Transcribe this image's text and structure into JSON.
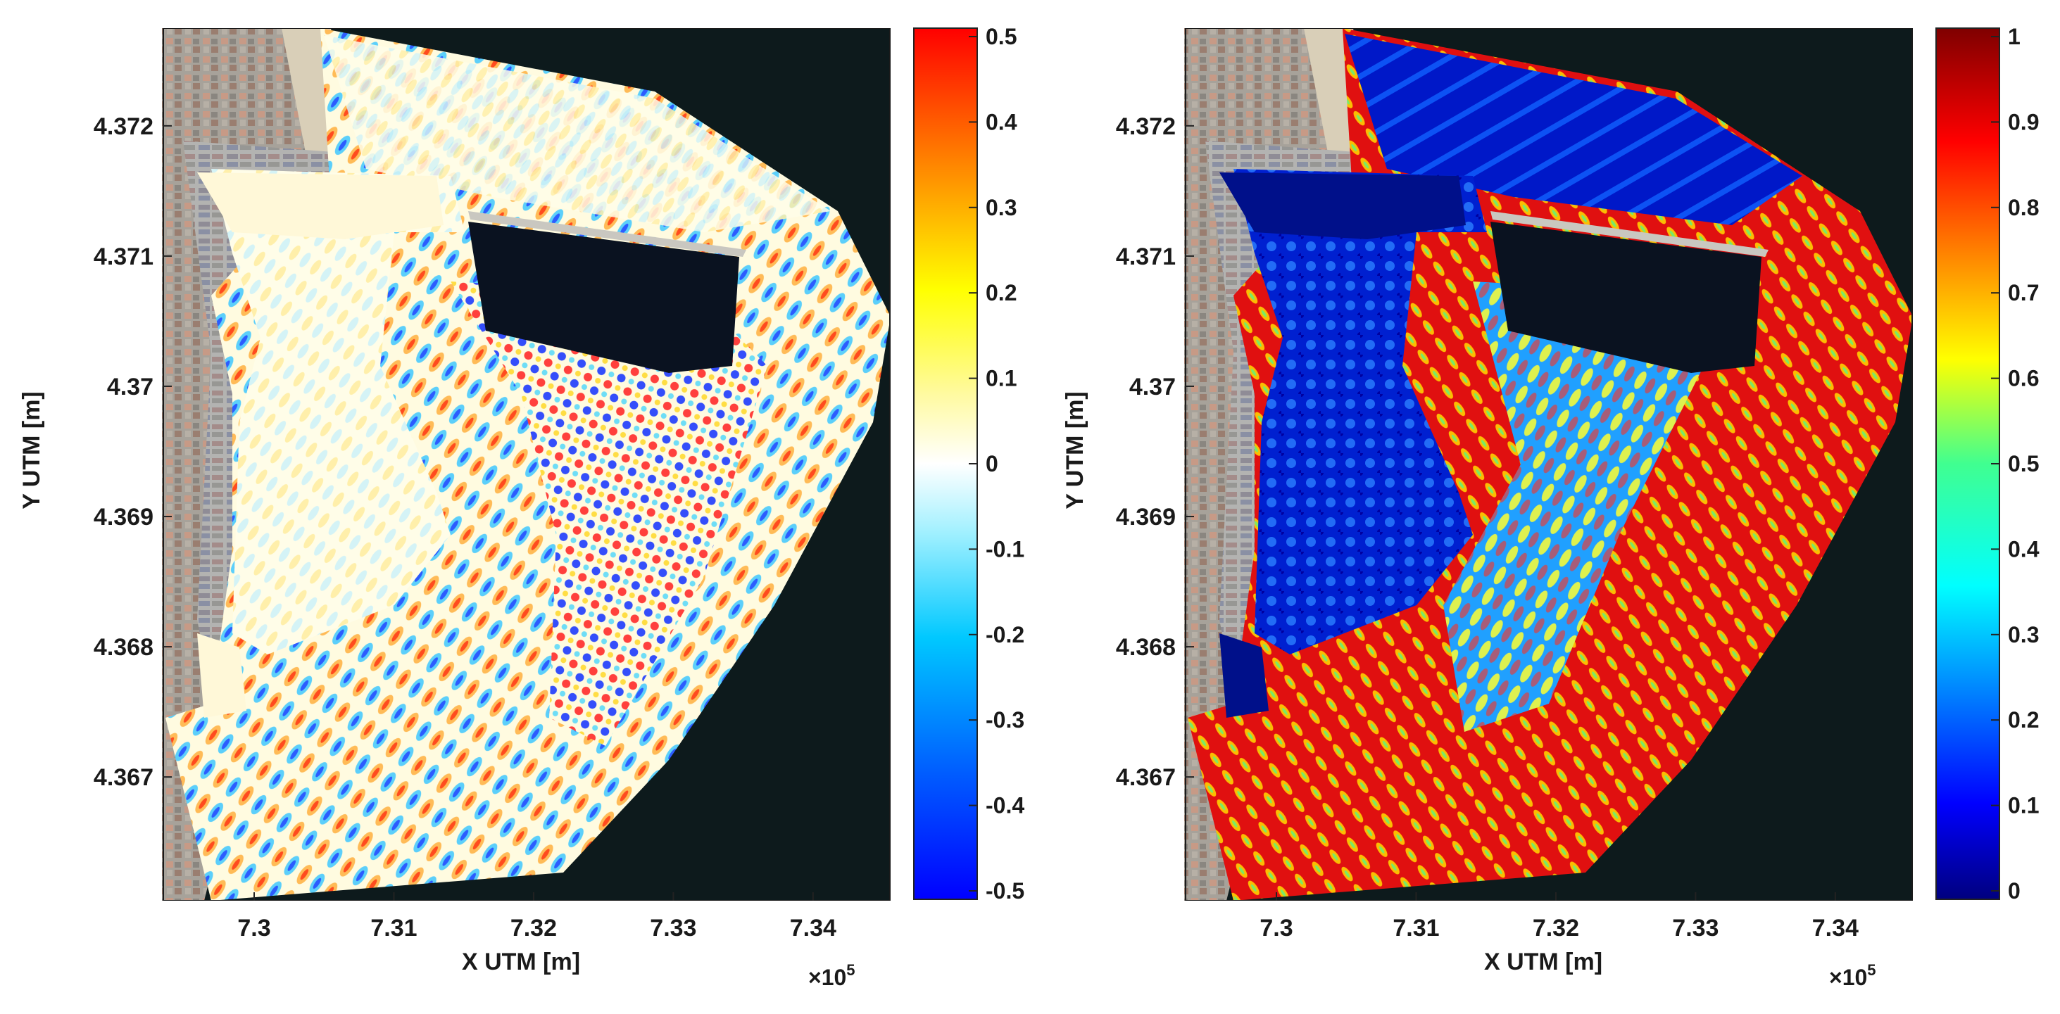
{
  "chart_data": [
    {
      "type": "heatmap",
      "panel": "left",
      "title": "",
      "xlabel": "X UTM [m]",
      "ylabel": "Y UTM [m]",
      "x_exponent_label": "×10^5",
      "x_ticks": [
        7.3,
        7.31,
        7.32,
        7.33,
        7.34
      ],
      "x_tick_labels": [
        "7.3",
        "7.31",
        "7.32",
        "7.33",
        "7.34"
      ],
      "y_ticks": [
        4.372,
        4.371,
        4.37,
        4.369,
        4.368,
        4.367
      ],
      "y_tick_labels": [
        "4.372",
        "4.371",
        "4.37",
        "4.369",
        "4.368",
        "4.367"
      ],
      "colorbar": {
        "min": -0.5,
        "max": 0.5,
        "colormap": "jet-with-white-center",
        "ticks": [
          "0.5",
          "0.4",
          "0.3",
          "0.2",
          "0.1",
          "0",
          "-0.1",
          "-0.2",
          "-0.3",
          "-0.4",
          "-0.5"
        ]
      },
      "background": "satellite image of port",
      "colors": {
        "positive": "#e01010",
        "negative": "#1010e0",
        "zero": "#fffbe0"
      }
    },
    {
      "type": "heatmap",
      "panel": "right",
      "title": "",
      "xlabel": "X UTM [m]",
      "ylabel": "Y UTM [m]",
      "x_exponent_label": "×10^5",
      "x_ticks": [
        7.3,
        7.31,
        7.32,
        7.33,
        7.34
      ],
      "x_tick_labels": [
        "7.3",
        "7.31",
        "7.32",
        "7.33",
        "7.34"
      ],
      "y_ticks": [
        4.372,
        4.371,
        4.37,
        4.369,
        4.368,
        4.367
      ],
      "y_tick_labels": [
        "4.372",
        "4.371",
        "4.37",
        "4.369",
        "4.368",
        "4.367"
      ],
      "colorbar": {
        "min": 0,
        "max": 1,
        "colormap": "jet",
        "ticks": [
          "1",
          "0.9",
          "0.8",
          "0.7",
          "0.6",
          "0.5",
          "0.4",
          "0.3",
          "0.2",
          "0.1",
          "0"
        ]
      },
      "background": "satellite image of port",
      "colors": {
        "low": "#00007f",
        "high": "#7f0000"
      }
    }
  ],
  "labels": {
    "left_xlabel": "X UTM [m]",
    "left_ylabel": "Y UTM [m]",
    "right_xlabel": "X UTM [m]",
    "right_ylabel": "Y UTM [m]",
    "x_exponent": "×10",
    "x_exponent_power": "5"
  }
}
